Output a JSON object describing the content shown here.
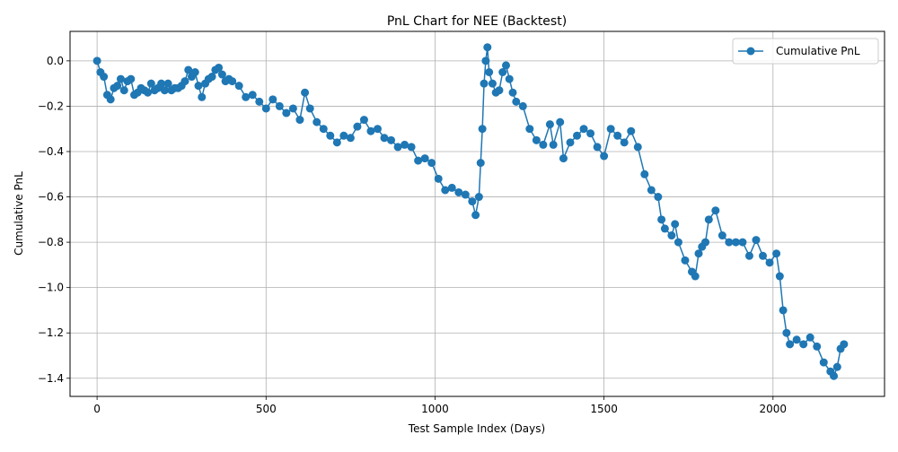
{
  "chart_data": {
    "type": "line",
    "title": "PnL Chart for NEE (Backtest)",
    "xlabel": "Test Sample Index (Days)",
    "ylabel": "Cumulative PnL",
    "xlim": [
      -80,
      2330
    ],
    "ylim": [
      -1.48,
      0.13
    ],
    "x_ticks": [
      0,
      500,
      1000,
      1500,
      2000
    ],
    "x_tick_labels": [
      "0",
      "500",
      "1000",
      "1500",
      "2000"
    ],
    "y_ticks": [
      -1.4,
      -1.2,
      -1.0,
      -0.8,
      -0.6,
      -0.4,
      -0.2,
      0.0
    ],
    "y_tick_labels": [
      "−1.4",
      "−1.2",
      "−1.0",
      "−0.8",
      "−0.6",
      "−0.4",
      "−0.2",
      "0.0"
    ],
    "grid": true,
    "legend_position": "top-right",
    "marker": "circle",
    "series": [
      {
        "name": "Cumulative PnL",
        "color": "#1f77b4",
        "points": [
          [
            0,
            0.0
          ],
          [
            10,
            -0.05
          ],
          [
            20,
            -0.07
          ],
          [
            30,
            -0.15
          ],
          [
            40,
            -0.17
          ],
          [
            50,
            -0.12
          ],
          [
            60,
            -0.11
          ],
          [
            70,
            -0.08
          ],
          [
            80,
            -0.13
          ],
          [
            90,
            -0.09
          ],
          [
            100,
            -0.08
          ],
          [
            110,
            -0.15
          ],
          [
            120,
            -0.14
          ],
          [
            130,
            -0.12
          ],
          [
            140,
            -0.13
          ],
          [
            150,
            -0.14
          ],
          [
            160,
            -0.1
          ],
          [
            170,
            -0.13
          ],
          [
            180,
            -0.12
          ],
          [
            190,
            -0.1
          ],
          [
            200,
            -0.13
          ],
          [
            210,
            -0.1
          ],
          [
            220,
            -0.13
          ],
          [
            230,
            -0.12
          ],
          [
            240,
            -0.12
          ],
          [
            250,
            -0.11
          ],
          [
            260,
            -0.09
          ],
          [
            270,
            -0.04
          ],
          [
            280,
            -0.07
          ],
          [
            290,
            -0.05
          ],
          [
            300,
            -0.11
          ],
          [
            310,
            -0.16
          ],
          [
            320,
            -0.1
          ],
          [
            330,
            -0.08
          ],
          [
            340,
            -0.07
          ],
          [
            350,
            -0.04
          ],
          [
            360,
            -0.03
          ],
          [
            370,
            -0.06
          ],
          [
            380,
            -0.09
          ],
          [
            390,
            -0.08
          ],
          [
            400,
            -0.09
          ],
          [
            420,
            -0.11
          ],
          [
            440,
            -0.16
          ],
          [
            460,
            -0.15
          ],
          [
            480,
            -0.18
          ],
          [
            500,
            -0.21
          ],
          [
            520,
            -0.17
          ],
          [
            540,
            -0.2
          ],
          [
            560,
            -0.23
          ],
          [
            580,
            -0.21
          ],
          [
            600,
            -0.26
          ],
          [
            615,
            -0.14
          ],
          [
            630,
            -0.21
          ],
          [
            650,
            -0.27
          ],
          [
            670,
            -0.3
          ],
          [
            690,
            -0.33
          ],
          [
            710,
            -0.36
          ],
          [
            730,
            -0.33
          ],
          [
            750,
            -0.34
          ],
          [
            770,
            -0.29
          ],
          [
            790,
            -0.26
          ],
          [
            810,
            -0.31
          ],
          [
            830,
            -0.3
          ],
          [
            850,
            -0.34
          ],
          [
            870,
            -0.35
          ],
          [
            890,
            -0.38
          ],
          [
            910,
            -0.37
          ],
          [
            930,
            -0.38
          ],
          [
            950,
            -0.44
          ],
          [
            970,
            -0.43
          ],
          [
            990,
            -0.45
          ],
          [
            1010,
            -0.52
          ],
          [
            1030,
            -0.57
          ],
          [
            1050,
            -0.56
          ],
          [
            1070,
            -0.58
          ],
          [
            1090,
            -0.59
          ],
          [
            1110,
            -0.62
          ],
          [
            1120,
            -0.68
          ],
          [
            1130,
            -0.6
          ],
          [
            1135,
            -0.45
          ],
          [
            1140,
            -0.3
          ],
          [
            1145,
            -0.1
          ],
          [
            1150,
            0.0
          ],
          [
            1155,
            0.06
          ],
          [
            1160,
            -0.05
          ],
          [
            1170,
            -0.1
          ],
          [
            1180,
            -0.14
          ],
          [
            1190,
            -0.13
          ],
          [
            1200,
            -0.05
          ],
          [
            1210,
            -0.02
          ],
          [
            1220,
            -0.08
          ],
          [
            1230,
            -0.14
          ],
          [
            1240,
            -0.18
          ],
          [
            1260,
            -0.2
          ],
          [
            1280,
            -0.3
          ],
          [
            1300,
            -0.35
          ],
          [
            1320,
            -0.37
          ],
          [
            1340,
            -0.28
          ],
          [
            1350,
            -0.37
          ],
          [
            1370,
            -0.27
          ],
          [
            1380,
            -0.43
          ],
          [
            1400,
            -0.36
          ],
          [
            1420,
            -0.33
          ],
          [
            1440,
            -0.3
          ],
          [
            1460,
            -0.32
          ],
          [
            1480,
            -0.38
          ],
          [
            1500,
            -0.42
          ],
          [
            1520,
            -0.3
          ],
          [
            1540,
            -0.33
          ],
          [
            1560,
            -0.36
          ],
          [
            1580,
            -0.31
          ],
          [
            1600,
            -0.38
          ],
          [
            1620,
            -0.5
          ],
          [
            1640,
            -0.57
          ],
          [
            1660,
            -0.6
          ],
          [
            1670,
            -0.7
          ],
          [
            1680,
            -0.74
          ],
          [
            1700,
            -0.77
          ],
          [
            1710,
            -0.72
          ],
          [
            1720,
            -0.8
          ],
          [
            1740,
            -0.88
          ],
          [
            1760,
            -0.93
          ],
          [
            1770,
            -0.95
          ],
          [
            1780,
            -0.85
          ],
          [
            1790,
            -0.82
          ],
          [
            1800,
            -0.8
          ],
          [
            1810,
            -0.7
          ],
          [
            1830,
            -0.66
          ],
          [
            1850,
            -0.77
          ],
          [
            1870,
            -0.8
          ],
          [
            1890,
            -0.8
          ],
          [
            1910,
            -0.8
          ],
          [
            1930,
            -0.86
          ],
          [
            1950,
            -0.79
          ],
          [
            1970,
            -0.86
          ],
          [
            1990,
            -0.89
          ],
          [
            2010,
            -0.85
          ],
          [
            2020,
            -0.95
          ],
          [
            2030,
            -1.1
          ],
          [
            2040,
            -1.2
          ],
          [
            2050,
            -1.25
          ],
          [
            2070,
            -1.23
          ],
          [
            2090,
            -1.25
          ],
          [
            2110,
            -1.22
          ],
          [
            2130,
            -1.26
          ],
          [
            2150,
            -1.33
          ],
          [
            2170,
            -1.37
          ],
          [
            2180,
            -1.39
          ],
          [
            2190,
            -1.35
          ],
          [
            2200,
            -1.27
          ],
          [
            2210,
            -1.25
          ]
        ]
      }
    ]
  }
}
